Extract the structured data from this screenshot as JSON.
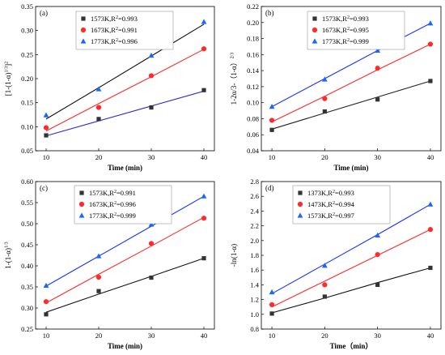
{
  "chart_data": [
    {
      "type": "scatter",
      "panel_label": "(a)",
      "xlabel": "Time (min)",
      "ylabel": "[1-(1-α)1/3]2",
      "ylabel_parts": {
        "base": "[1-(1-α)",
        "sup1": "1/3",
        "close": "]",
        "sup2": "2"
      },
      "xlim": [
        8,
        42
      ],
      "ylim": [
        0.05,
        0.35
      ],
      "xticks": [
        10,
        20,
        30,
        40
      ],
      "yticks": [
        0.05,
        0.1,
        0.15,
        0.2,
        0.25,
        0.3,
        0.35
      ],
      "ytick_labels": [
        "0.05",
        "0.10",
        "0.15",
        "0.20",
        "0.25",
        "0.30",
        "0.35"
      ],
      "legend_position": "top-left",
      "series": [
        {
          "name": "1573K,R2=0.993",
          "name_main": "1573K,R",
          "name_sup": "2",
          "name_tail": "=0.993",
          "color": "#333333",
          "marker": "square",
          "line_color": "#2b2bd9",
          "x": [
            10,
            20,
            30,
            40
          ],
          "y": [
            0.082,
            0.116,
            0.14,
            0.176
          ],
          "fit": [
            0.081,
            0.112,
            0.143,
            0.174
          ]
        },
        {
          "name": "1673K,R2=0.991",
          "name_main": "1673K,R",
          "name_sup": "2",
          "name_tail": "=0.991",
          "color": "#ff2a2a",
          "marker": "circle",
          "line_color": "#ff2a2a",
          "x": [
            10,
            20,
            30,
            40
          ],
          "y": [
            0.098,
            0.14,
            0.206,
            0.262
          ],
          "fit": [
            0.091,
            0.148,
            0.204,
            0.261
          ]
        },
        {
          "name": "1773K,R2=0.996",
          "name_main": "1773K,R",
          "name_sup": "2",
          "name_tail": "=0.996",
          "color": "#1a66ff",
          "marker": "triangle",
          "line_color": "#111111",
          "x": [
            10,
            20,
            30,
            40
          ],
          "y": [
            0.124,
            0.178,
            0.248,
            0.318
          ],
          "fit": [
            0.116,
            0.181,
            0.247,
            0.313
          ]
        }
      ]
    },
    {
      "type": "scatter",
      "panel_label": "(b)",
      "xlabel": "Time (min)",
      "ylabel": "1-2α/3-（1-α）2/3",
      "ylabel_parts": {
        "base": "1-2α/3-（1-α）",
        "sup1": "2/3",
        "close": "",
        "sup2": ""
      },
      "xlim": [
        8,
        42
      ],
      "ylim": [
        0.04,
        0.22
      ],
      "xticks": [
        10,
        20,
        30,
        40
      ],
      "yticks": [
        0.04,
        0.06,
        0.08,
        0.1,
        0.12,
        0.14,
        0.16,
        0.18,
        0.2,
        0.22
      ],
      "ytick_labels": [
        "0.04",
        "0.06",
        "0.08",
        "0.10",
        "0.12",
        "0.14",
        "0.16",
        "0.18",
        "0.20",
        "0.22"
      ],
      "legend_position": "top-center",
      "series": [
        {
          "name": "1573K,R2=0.993",
          "name_main": "1573K,R",
          "name_sup": "2",
          "name_tail": "=0.993",
          "color": "#333333",
          "marker": "square",
          "line_color": "#222222",
          "x": [
            10,
            20,
            30,
            40
          ],
          "y": [
            0.066,
            0.089,
            0.104,
            0.127
          ],
          "fit": [
            0.067,
            0.087,
            0.107,
            0.127
          ]
        },
        {
          "name": "1673K,R2=0.995",
          "name_main": "1673K,R",
          "name_sup": "2",
          "name_tail": "=0.995",
          "color": "#ff2a2a",
          "marker": "circle",
          "line_color": "#ff2a2a",
          "x": [
            10,
            20,
            30,
            40
          ],
          "y": [
            0.078,
            0.105,
            0.143,
            0.173
          ],
          "fit": [
            0.076,
            0.108,
            0.141,
            0.173
          ]
        },
        {
          "name": "1773K,R2=0.999",
          "name_main": "1773K,R",
          "name_sup": "2",
          "name_tail": "=0.999",
          "color": "#1a66ff",
          "marker": "triangle",
          "line_color": "#1a33ff",
          "x": [
            10,
            20,
            30,
            40
          ],
          "y": [
            0.095,
            0.129,
            0.165,
            0.199
          ],
          "fit": [
            0.095,
            0.13,
            0.165,
            0.199
          ]
        }
      ]
    },
    {
      "type": "scatter",
      "panel_label": "(c)",
      "xlabel": "Time (min)",
      "ylabel": "1-(1-α)1/3",
      "ylabel_parts": {
        "base": "1-(1-α)",
        "sup1": "1/3",
        "close": "",
        "sup2": ""
      },
      "xlim": [
        8,
        42
      ],
      "ylim": [
        0.25,
        0.6
      ],
      "xticks": [
        10,
        20,
        30,
        40
      ],
      "yticks": [
        0.25,
        0.3,
        0.35,
        0.4,
        0.45,
        0.5,
        0.55,
        0.6
      ],
      "ytick_labels": [
        "0.25",
        "0.30",
        "0.35",
        "0.40",
        "0.45",
        "0.50",
        "0.55",
        "0.60"
      ],
      "legend_position": "top-left",
      "series": [
        {
          "name": "1573K,R2=0.991",
          "name_main": "1573K,R",
          "name_sup": "2",
          "name_tail": "=0.991",
          "color": "#333333",
          "marker": "square",
          "line_color": "#111111",
          "x": [
            10,
            20,
            30,
            40
          ],
          "y": [
            0.285,
            0.34,
            0.372,
            0.418
          ],
          "fit": [
            0.29,
            0.333,
            0.375,
            0.418
          ]
        },
        {
          "name": "1673K,R2=0.996",
          "name_main": "1673K,R",
          "name_sup": "2",
          "name_tail": "=0.996",
          "color": "#ff2a2a",
          "marker": "circle",
          "line_color": "#ff2a2a",
          "x": [
            10,
            20,
            30,
            40
          ],
          "y": [
            0.315,
            0.373,
            0.453,
            0.513
          ],
          "fit": [
            0.312,
            0.38,
            0.447,
            0.515
          ]
        },
        {
          "name": "1773K,R2=0.999",
          "name_main": "1773K,R",
          "name_sup": "2",
          "name_tail": "=0.999",
          "color": "#1a66ff",
          "marker": "triangle",
          "line_color": "#1a33ff",
          "x": [
            10,
            20,
            30,
            40
          ],
          "y": [
            0.353,
            0.423,
            0.498,
            0.565
          ],
          "fit": [
            0.352,
            0.423,
            0.494,
            0.565
          ]
        }
      ]
    },
    {
      "type": "scatter",
      "panel_label": "(d)",
      "xlabel": "Time（min）",
      "ylabel": "-ln(1-α)",
      "ylabel_parts": {
        "base": "-ln(1-α)",
        "sup1": "",
        "close": "",
        "sup2": ""
      },
      "xlim": [
        8,
        42
      ],
      "ylim": [
        0.8,
        2.8
      ],
      "xticks": [
        10,
        20,
        30,
        40
      ],
      "yticks": [
        0.8,
        1.0,
        1.2,
        1.4,
        1.6,
        1.8,
        2.0,
        2.2,
        2.4,
        2.6,
        2.8
      ],
      "ytick_labels": [
        "0.8",
        "1.0",
        "1.2",
        "1.4",
        "1.6",
        "1.8",
        "2.0",
        "2.2",
        "2.4",
        "2.6",
        "2.8"
      ],
      "legend_position": "top-left",
      "series": [
        {
          "name": "1373K,R2=0.993",
          "name_main": "1373K,R",
          "name_sup": "2",
          "name_tail": "=0.993",
          "color": "#333333",
          "marker": "square",
          "line_color": "#111111",
          "x": [
            10,
            20,
            30,
            40
          ],
          "y": [
            1.01,
            1.24,
            1.4,
            1.63
          ],
          "fit": [
            1.02,
            1.22,
            1.43,
            1.63
          ]
        },
        {
          "name": "1473K,R2=0.994",
          "name_main": "1473K,R",
          "name_sup": "2",
          "name_tail": "=0.994",
          "color": "#ff2a2a",
          "marker": "circle",
          "line_color": "#ff2a2a",
          "x": [
            10,
            20,
            30,
            40
          ],
          "y": [
            1.13,
            1.4,
            1.81,
            2.15
          ],
          "fit": [
            1.1,
            1.45,
            1.8,
            2.15
          ]
        },
        {
          "name": "1573K,R2=0.997",
          "name_main": "1573K,R",
          "name_sup": "2",
          "name_tail": "=0.997",
          "color": "#1a66ff",
          "marker": "triangle",
          "line_color": "#1a33ff",
          "x": [
            10,
            20,
            30,
            40
          ],
          "y": [
            1.3,
            1.66,
            2.07,
            2.49
          ],
          "fit": [
            1.28,
            1.68,
            2.08,
            2.49
          ]
        }
      ]
    }
  ]
}
